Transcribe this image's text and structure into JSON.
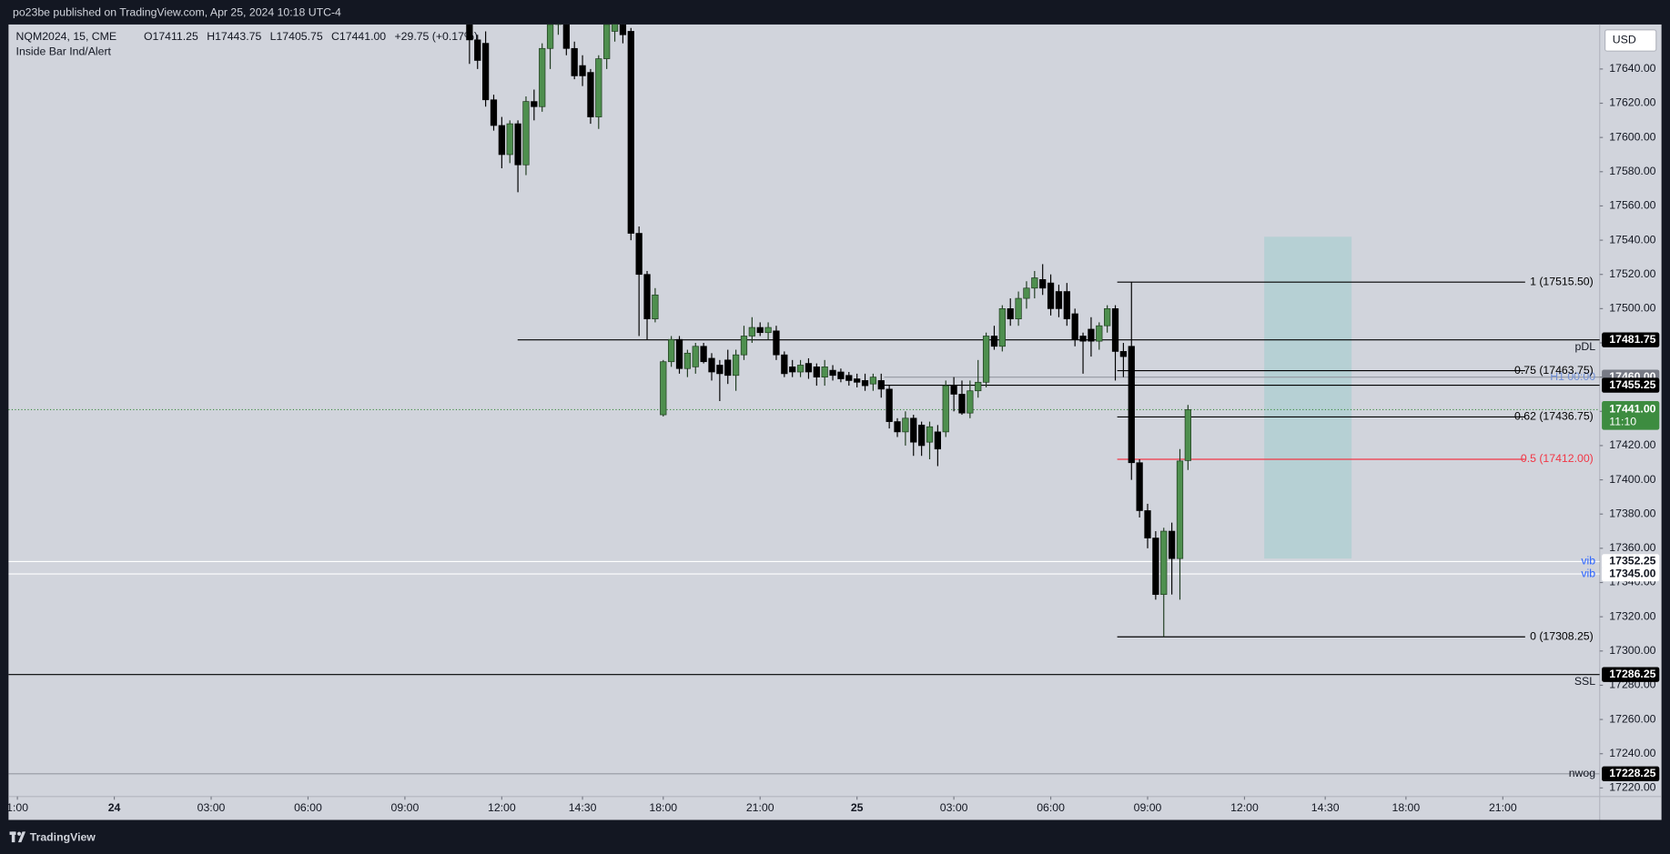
{
  "header": {
    "publisher": "po23be published on TradingView.com, Apr 25, 2024 10:18 UTC-4"
  },
  "chart_data": {
    "type": "candlestick",
    "symbol": "NQM2024, 15, CME",
    "ohlc_legend": [
      "O17411.25",
      "H17443.75",
      "L17405.75",
      "C17441.00",
      "+29.75 (+0.17%)"
    ],
    "indicator": "Inside Bar Ind/Alert",
    "currency": "USD",
    "up_color": "#4e8f4e",
    "down_color": "#000000",
    "x": [
      44,
      45,
      46,
      47,
      48,
      49,
      50,
      51,
      52,
      53,
      54,
      55,
      56,
      57,
      58,
      59,
      60,
      61,
      62,
      63,
      64,
      65,
      66,
      67,
      68,
      69,
      70,
      71,
      72,
      73,
      74,
      75,
      76,
      77,
      78,
      79,
      80,
      81,
      82,
      83,
      84,
      85,
      86,
      87,
      88,
      89,
      90,
      91,
      92,
      93,
      94,
      95,
      96,
      97,
      98,
      99,
      100,
      101,
      102,
      103,
      104,
      105,
      106,
      107,
      108,
      109,
      110,
      111,
      112,
      113,
      114,
      115,
      116,
      117,
      118,
      119,
      120,
      121,
      122,
      123,
      124,
      125,
      126,
      127,
      128,
      129,
      130,
      131,
      132,
      133
    ],
    "open": [
      17666,
      17657,
      17655,
      17622,
      17607,
      17590,
      17608,
      17584,
      17621,
      17618,
      17652,
      17666,
      17668,
      17652,
      17642,
      17638,
      17612,
      17646,
      17662,
      17668,
      17662,
      17544,
      17520,
      17494,
      17438,
      17469,
      17482,
      17465,
      17466,
      17478,
      17471,
      17467,
      17470,
      17461,
      17473,
      17484,
      17489,
      17486,
      17487,
      17473,
      17466,
      17463,
      17468,
      17466,
      17460,
      17464,
      17463,
      17461,
      17459,
      17458,
      17456,
      17458,
      17453,
      17434,
      17428,
      17436,
      17432,
      17422,
      17428,
      17428,
      17455,
      17450,
      17439,
      17452,
      17457,
      17484,
      17478,
      17500,
      17494,
      17506,
      17512,
      17517,
      17515,
      17510,
      17510,
      17497,
      17484,
      17488,
      17481,
      17490,
      17500,
      17475,
      17478,
      17410,
      17382,
      17366,
      17333,
      17370,
      17354,
      17411.25
    ],
    "high": [
      17670,
      17660,
      17662,
      17625,
      17612,
      17610,
      17610,
      17624,
      17628,
      17655,
      17668,
      17680,
      17672,
      17656,
      17648,
      17640,
      17648,
      17670,
      17675,
      17672,
      17664,
      17548,
      17522,
      17512,
      17470,
      17484,
      17484,
      17476,
      17480,
      17480,
      17474,
      17470,
      17476,
      17476,
      17490,
      17495,
      17492,
      17492,
      17490,
      17475,
      17470,
      17470,
      17471,
      17468,
      17470,
      17467,
      17465,
      17463,
      17462,
      17462,
      17462,
      17462,
      17455,
      17436,
      17440,
      17438,
      17434,
      17434,
      17432,
      17458,
      17460,
      17458,
      17458,
      17470,
      17486,
      17490,
      17502,
      17506,
      17510,
      17516,
      17522,
      17526,
      17520,
      17514,
      17515,
      17500,
      17486,
      17495,
      17492,
      17502,
      17502,
      17480,
      17515.5,
      17412,
      17386,
      17370,
      17372,
      17375,
      17418,
      17443.75
    ],
    "low": [
      17643,
      17640,
      17618,
      17604,
      17582,
      17585,
      17568,
      17578,
      17610,
      17615,
      17640,
      17660,
      17648,
      17634,
      17630,
      17608,
      17605,
      17640,
      17656,
      17655,
      17540,
      17484,
      17482,
      17492,
      17437,
      17466,
      17462,
      17460,
      17462,
      17468,
      17458,
      17446,
      17456,
      17452,
      17470,
      17480,
      17484,
      17482,
      17470,
      17460,
      17460,
      17460,
      17459,
      17455,
      17455,
      17458,
      17457,
      17455,
      17454,
      17452,
      17452,
      17448,
      17430,
      17425,
      17420,
      17414,
      17414,
      17412,
      17408,
      17425,
      17440,
      17438,
      17436,
      17448,
      17454,
      17476,
      17475,
      17490,
      17490,
      17500,
      17506,
      17508,
      17496,
      17495,
      17490,
      17478,
      17462,
      17472,
      17476,
      17486,
      17458,
      17460,
      17400,
      17378,
      17360,
      17330,
      17308.25,
      17333,
      17330,
      17405.75
    ],
    "close": [
      17657,
      17645,
      17622,
      17607,
      17590,
      17608,
      17584,
      17621,
      17618,
      17652,
      17666,
      17675,
      17652,
      17636,
      17636,
      17612,
      17646,
      17666,
      17670,
      17660,
      17544,
      17520,
      17494,
      17508,
      17469,
      17482,
      17465,
      17474,
      17478,
      17469,
      17463,
      17462,
      17461,
      17473,
      17484,
      17489,
      17486,
      17489,
      17473,
      17462,
      17463,
      17467,
      17463,
      17460,
      17466,
      17461,
      17459,
      17458,
      17457,
      17455,
      17460,
      17453,
      17434,
      17428,
      17436,
      17422,
      17420,
      17431,
      17418,
      17455,
      17450,
      17439,
      17452,
      17457,
      17484,
      17478,
      17500,
      17494,
      17506,
      17512,
      17518,
      17512,
      17500,
      17500,
      17494,
      17482,
      17481,
      17481,
      17490,
      17500,
      17475,
      17472,
      17410,
      17382,
      17366,
      17333,
      17370,
      17354,
      17411,
      17441
    ],
    "xlim": [
      -13.1,
      184
    ],
    "xticks": [
      {
        "value": -12,
        "label": "1:00"
      },
      {
        "value": 0,
        "label": "24"
      },
      {
        "value": 12,
        "label": "03:00"
      },
      {
        "value": 24,
        "label": "06:00"
      },
      {
        "value": 36,
        "label": "09:00"
      },
      {
        "value": 48,
        "label": "12:00"
      },
      {
        "value": 58,
        "label": "14:30"
      },
      {
        "value": 68,
        "label": "18:00"
      },
      {
        "value": 80,
        "label": "21:00"
      },
      {
        "value": 92,
        "label": "25"
      },
      {
        "value": 104,
        "label": "03:00"
      },
      {
        "value": 116,
        "label": "06:00"
      },
      {
        "value": 128,
        "label": "09:00"
      },
      {
        "value": 140,
        "label": "12:00"
      },
      {
        "value": 150,
        "label": "14:30"
      },
      {
        "value": 160,
        "label": "18:00"
      },
      {
        "value": 172,
        "label": "21:00"
      }
    ],
    "ylim": [
      17215,
      17666
    ],
    "yticks": [
      {
        "value": 17220,
        "label": "17220.00"
      },
      {
        "value": 17240,
        "label": "17240.00"
      },
      {
        "value": 17260,
        "label": "17260.00"
      },
      {
        "value": 17280,
        "label": "17280.00"
      },
      {
        "value": 17300,
        "label": "17300.00"
      },
      {
        "value": 17320,
        "label": "17320.00"
      },
      {
        "value": 17340,
        "label": "17340.00"
      },
      {
        "value": 17360,
        "label": "17360.00"
      },
      {
        "value": 17380,
        "label": "17380.00"
      },
      {
        "value": 17400,
        "label": "17400.00"
      },
      {
        "value": 17420,
        "label": "17420.00"
      },
      {
        "value": 17440,
        "label": "17440.00"
      },
      {
        "value": 17460,
        "label": "17460.00"
      },
      {
        "value": 17480,
        "label": "17480.00"
      },
      {
        "value": 17500,
        "label": "17500.00"
      },
      {
        "value": 17520,
        "label": "17520.00"
      },
      {
        "value": 17540,
        "label": "17540.00"
      },
      {
        "value": 17560,
        "label": "17560.00"
      },
      {
        "value": 17580,
        "label": "17580.00"
      },
      {
        "value": 17600,
        "label": "17600.00"
      },
      {
        "value": 17620,
        "label": "17620.00"
      },
      {
        "value": 17640,
        "label": "17640.00"
      }
    ],
    "levels": [
      {
        "name": "pDL",
        "value": 17481.75,
        "label": "17481.75",
        "color": "#000000",
        "box": "#000000"
      },
      {
        "name": "H1 00:00",
        "value": 17460,
        "label": "17460.00",
        "color": "#9598a1",
        "box": "#787b86"
      },
      {
        "value": 17455.25,
        "label": "17455.25",
        "color": "#000000",
        "box": "#000000"
      },
      {
        "name": "vib",
        "value": 17352.25,
        "label": "17352.25",
        "color": "#ffffff",
        "box": "#ffffff"
      },
      {
        "name": "vib",
        "value": 17345,
        "label": "17345.00",
        "color": "#ffffff",
        "box": "#ffffff"
      },
      {
        "name": "SSL",
        "value": 17286.25,
        "label": "17286.25",
        "color": "#000000",
        "box": "#000000"
      },
      {
        "name": "nwog",
        "value": 17228.25,
        "label": "17228.25",
        "color": "#9598a1",
        "box": "#000000"
      }
    ],
    "fib": [
      {
        "label": "1 (17515.50)",
        "value": 17515.5,
        "color": "#000000"
      },
      {
        "label": "0.75 (17463.75)",
        "value": 17463.75,
        "color": "#000000"
      },
      {
        "label": "0.62 (17436.75)",
        "value": 17436.75,
        "color": "#000000"
      },
      {
        "label": "0.5 (17412.00)",
        "value": 17412,
        "color": "#f23645"
      },
      {
        "label": "0 (17308.25)",
        "value": 17308.25,
        "color": "#000000"
      }
    ],
    "zone": {
      "top": 17542,
      "bottom": 17354,
      "color": "#b2cfd2"
    },
    "last_price": {
      "value": 17441,
      "label": "17441.00",
      "countdown": "11:10",
      "color": "#3d8c40"
    }
  },
  "footer": {
    "brand": "TradingView"
  }
}
